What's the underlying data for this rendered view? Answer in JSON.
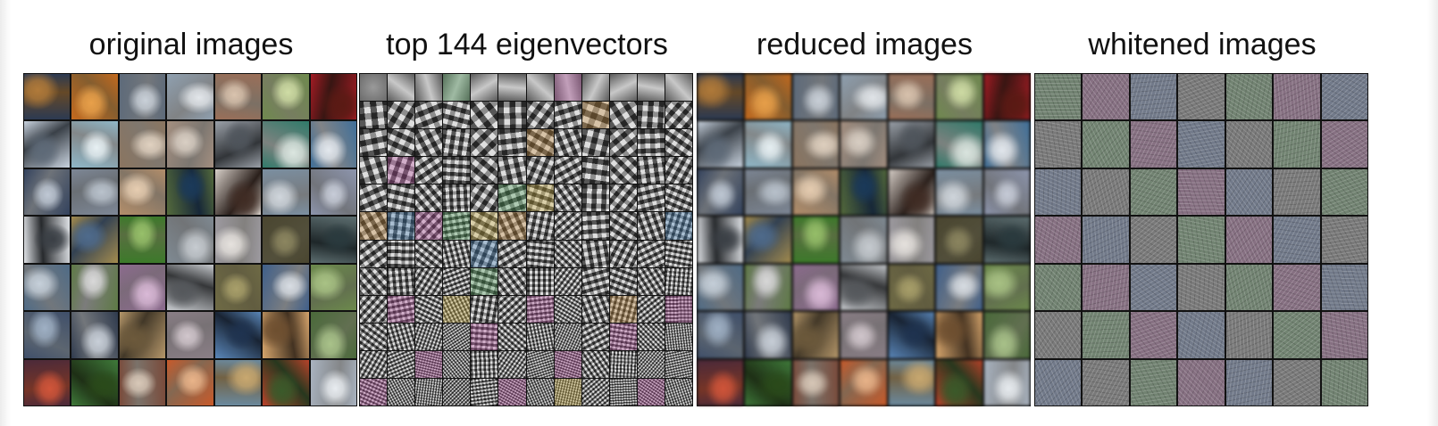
{
  "panels": [
    {
      "id": "original",
      "title": "original images",
      "grid": 7,
      "style": "photo"
    },
    {
      "id": "eigenvectors",
      "title": "top 144 eigenvectors",
      "grid": 12,
      "style": "eigen"
    },
    {
      "id": "reduced",
      "title": "reduced images",
      "grid": 7,
      "style": "blurred"
    },
    {
      "id": "whitened",
      "title": "whitened images",
      "grid": 7,
      "style": "whitened"
    }
  ],
  "palette": {
    "photo_colors": [
      [
        "#2c3a52",
        "#b07a3a"
      ],
      [
        "#c46a1e",
        "#e8a04a"
      ],
      [
        "#5d6a7a",
        "#c9d0d8"
      ],
      [
        "#8fa0b0",
        "#e2e6ea"
      ],
      [
        "#9b6f58",
        "#d9c3ae"
      ],
      [
        "#6f8a4e",
        "#cfdca5"
      ],
      [
        "#a31c24",
        "#5a1a14"
      ],
      [
        "#c9d3df",
        "#5e6a78"
      ],
      [
        "#8fb7c8",
        "#e7f0f3"
      ],
      [
        "#8b7560",
        "#e0d1c0"
      ],
      [
        "#a48f80",
        "#d9cfc4"
      ],
      [
        "#9aa0a8",
        "#4f555c"
      ],
      [
        "#2f7a6a",
        "#dbe6e0"
      ],
      [
        "#3f6f99",
        "#e3e8ee"
      ],
      [
        "#33425d",
        "#bfc8d4"
      ],
      [
        "#7d8796",
        "#b9c2cc"
      ],
      [
        "#b38e6a",
        "#e6cdb1"
      ],
      [
        "#556b3c",
        "#1b3a5a"
      ],
      [
        "#d7cfc8",
        "#402c24"
      ],
      [
        "#7b8fa1",
        "#d0d6dc"
      ],
      [
        "#8d95ad",
        "#c7ccd8"
      ],
      [
        "#dfe2e6",
        "#3a3f45"
      ],
      [
        "#a48c4e",
        "#4f6b8c"
      ],
      [
        "#3c7a2a",
        "#97c06a"
      ],
      [
        "#7f8a93",
        "#c6cbd0"
      ],
      [
        "#9d9aa0",
        "#e6e2de"
      ],
      [
        "#4a4630",
        "#8c8660"
      ],
      [
        "#5d6e70",
        "#2a3a3e"
      ],
      [
        "#4f6b86",
        "#c6d0da"
      ],
      [
        "#5e7a45",
        "#d9d9d9"
      ],
      [
        "#8c6b8e",
        "#d9b9d6"
      ],
      [
        "#c5c8cc",
        "#55585c"
      ],
      [
        "#6e6a45",
        "#a89f6a"
      ],
      [
        "#3f5f8a",
        "#d8dde3"
      ],
      [
        "#6c8a4c",
        "#a9c285"
      ],
      [
        "#3f4f6a",
        "#9fb0c4"
      ],
      [
        "#2f3a4d",
        "#c8cfd8"
      ],
      [
        "#b5976a",
        "#6d5a3c"
      ],
      [
        "#8a7e86",
        "#d1c6cc"
      ],
      [
        "#5a86b8",
        "#1f3350"
      ],
      [
        "#d6a56c",
        "#6e4f30"
      ],
      [
        "#4a6a3a",
        "#a9c28a"
      ],
      [
        "#4b2a3a",
        "#d0553a"
      ],
      [
        "#3f7a3a",
        "#2a4a1a"
      ],
      [
        "#7a4a3a",
        "#d8c8b8"
      ],
      [
        "#c85a2a",
        "#e9b48a"
      ],
      [
        "#6a8aa0",
        "#c8a870"
      ],
      [
        "#b8422a",
        "#3a5a2a"
      ],
      [
        "#a9b3c0",
        "#e8ecf0"
      ]
    ],
    "eigen_accents": [
      "#c58a3a",
      "#3f7fb8",
      "#b84fa0",
      "#4fa05a",
      "#d0b040"
    ],
    "whitened_base": "#7a7a7a"
  }
}
